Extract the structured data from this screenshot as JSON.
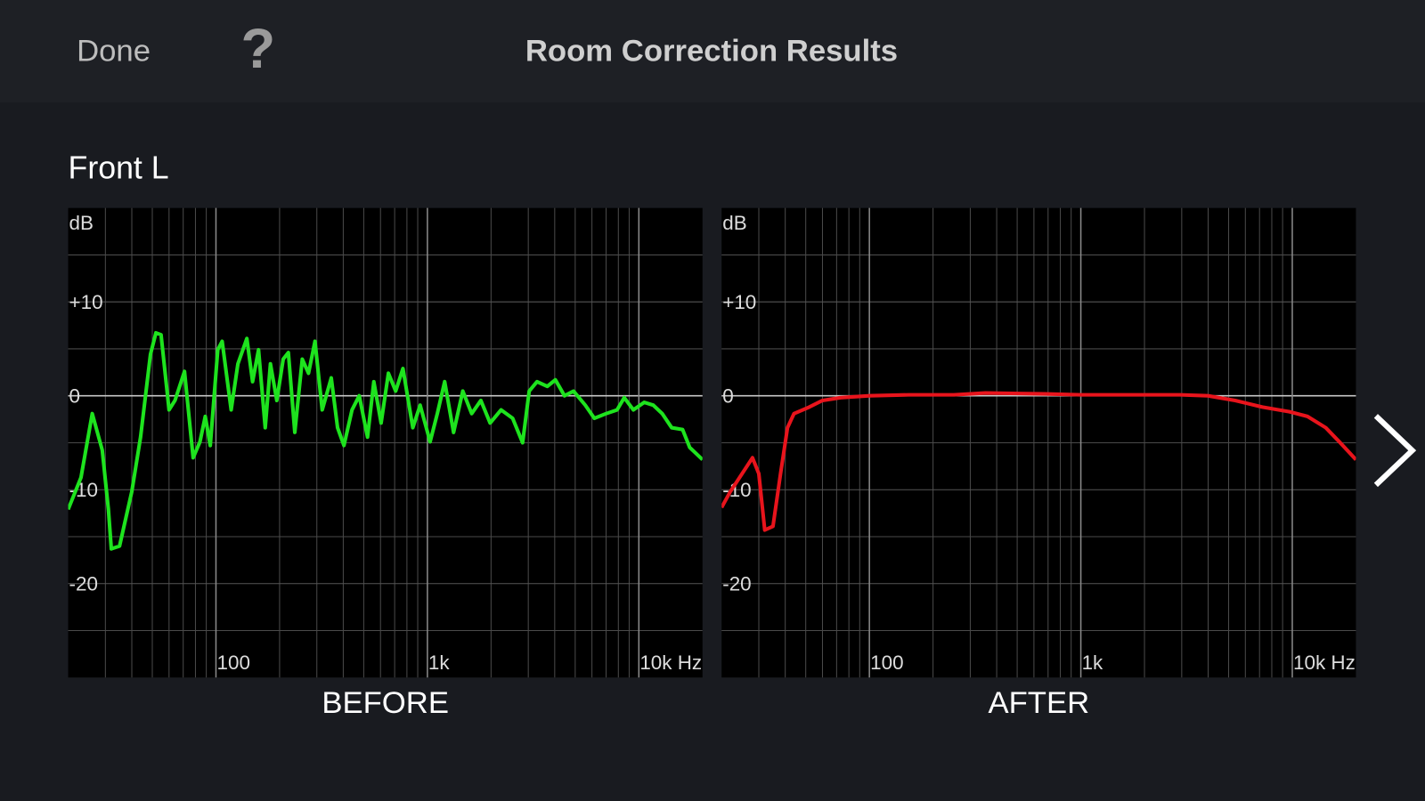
{
  "header": {
    "done": "Done",
    "help": "?",
    "title": "Room Correction Results"
  },
  "channel": "Front L",
  "chart_data": [
    {
      "type": "line",
      "label": "BEFORE",
      "ylabel": "dB",
      "x_scale": "log",
      "xlim": [
        20,
        20000
      ],
      "ylim": [
        -30,
        20
      ],
      "xticks": [
        100,
        {
          "value": 1000,
          "label": "1k"
        },
        {
          "value": 10000,
          "label": "10k Hz"
        }
      ],
      "xminor": [
        30,
        40,
        50,
        60,
        70,
        80,
        90,
        200,
        300,
        400,
        500,
        600,
        700,
        800,
        900,
        2000,
        3000,
        4000,
        5000,
        6000,
        7000,
        8000,
        9000
      ],
      "yticks": [
        {
          "value": 10,
          "label": "+10"
        },
        0,
        -10,
        -20
      ],
      "yminor": [
        15,
        5,
        -5,
        -15,
        -25
      ],
      "grid": true,
      "x": [
        20,
        23,
        26,
        29,
        31,
        32,
        35,
        40,
        44,
        49,
        52,
        55,
        60,
        64,
        71,
        78,
        84,
        89,
        94,
        102,
        107,
        118,
        127,
        140,
        149,
        159,
        171,
        181,
        194,
        208,
        220,
        236,
        256,
        274,
        294,
        318,
        351,
        376,
        403,
        440,
        476,
        521,
        558,
        604,
        654,
        708,
        766,
        853,
        924,
        1030,
        1114,
        1207,
        1330,
        1470,
        1620,
        1790,
        1980,
        2230,
        2530,
        2820,
        3030,
        3300,
        3690,
        4030,
        4450,
        4910,
        5580,
        6160,
        7000,
        7890,
        8530,
        9420,
        10600,
        11700,
        12900,
        14300,
        16100,
        17400,
        20000
      ],
      "series": [
        {
          "color": "#1ee31e",
          "values": [
            -12.1,
            -8.7,
            -1.9,
            -5.8,
            -12.1,
            -16.3,
            -16.0,
            -10.2,
            -4.4,
            4.4,
            6.7,
            6.5,
            -1.5,
            -0.5,
            2.6,
            -6.6,
            -4.9,
            -2.2,
            -5.3,
            4.9,
            5.8,
            -1.5,
            3.4,
            6.1,
            1.5,
            4.9,
            -3.4,
            3.4,
            -0.5,
            3.9,
            4.6,
            -3.9,
            3.9,
            2.4,
            5.8,
            -1.5,
            1.9,
            -3.4,
            -5.3,
            -1.5,
            0,
            -4.4,
            1.5,
            -2.9,
            2.4,
            0.5,
            2.9,
            -3.4,
            -1.0,
            -4.9,
            -1.9,
            1.5,
            -3.9,
            0.5,
            -1.9,
            -0.5,
            -2.9,
            -1.5,
            -2.4,
            -5.0,
            0.5,
            1.5,
            1.0,
            1.7,
            0,
            0.5,
            -1.0,
            -2.4,
            -1.9,
            -1.5,
            -0.2,
            -1.5,
            -0.7,
            -1.0,
            -1.9,
            -3.4,
            -3.6,
            -5.5,
            -6.8
          ]
        }
      ]
    },
    {
      "type": "line",
      "label": "AFTER",
      "ylabel": "dB",
      "x_scale": "log",
      "xlim": [
        20,
        20000
      ],
      "ylim": [
        -30,
        20
      ],
      "xticks": [
        100,
        {
          "value": 1000,
          "label": "1k"
        },
        {
          "value": 10000,
          "label": "10k Hz"
        }
      ],
      "xminor": [
        30,
        40,
        50,
        60,
        70,
        80,
        90,
        200,
        300,
        400,
        500,
        600,
        700,
        800,
        900,
        2000,
        3000,
        4000,
        5000,
        6000,
        7000,
        8000,
        9000
      ],
      "yticks": [
        {
          "value": 10,
          "label": "+10"
        },
        0,
        -10,
        -20
      ],
      "yminor": [
        15,
        5,
        -5,
        -15,
        -25
      ],
      "grid": true,
      "x": [
        20,
        22,
        25,
        28,
        30,
        32,
        35,
        38,
        41,
        44,
        52,
        60,
        73,
        100,
        153,
        251,
        354,
        673,
        1000,
        1810,
        2960,
        3990,
        5370,
        7220,
        9700,
        11800,
        14400,
        16700,
        20000
      ],
      "series": [
        {
          "color": "#e8141c",
          "values": [
            -11.9,
            -10.2,
            -8.3,
            -6.6,
            -8.3,
            -14.3,
            -13.9,
            -8.3,
            -3.4,
            -1.9,
            -1.2,
            -0.5,
            -0.2,
            0,
            0.1,
            0.1,
            0.3,
            0.2,
            0.1,
            0.1,
            0.1,
            0,
            -0.5,
            -1.2,
            -1.7,
            -2.2,
            -3.4,
            -4.9,
            -6.8
          ]
        }
      ]
    }
  ]
}
